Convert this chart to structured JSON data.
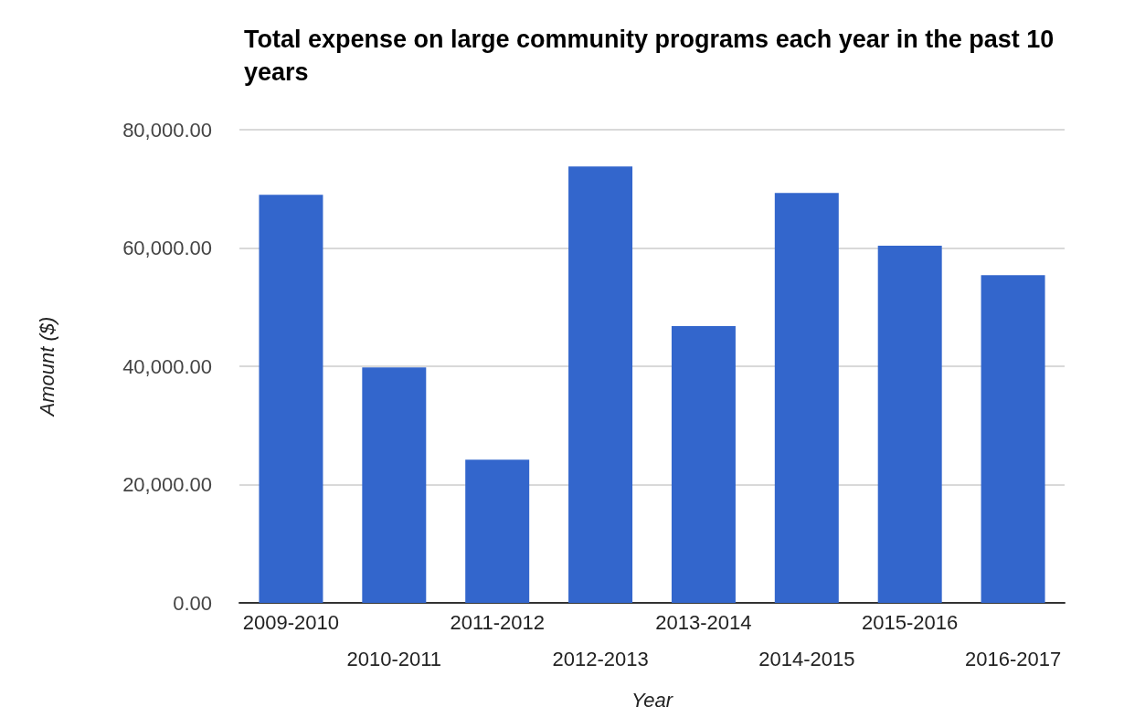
{
  "chart_data": {
    "type": "bar",
    "title": "Total expense on large community programs each year in the past 10 years",
    "xlabel": "Year",
    "ylabel": "Amount ($)",
    "categories": [
      "2009-2010",
      "2010-2011",
      "2011-2012",
      "2012-2013",
      "2013-2014",
      "2014-2015",
      "2015-2016",
      "2016-2017"
    ],
    "values": [
      69000,
      39800,
      24200,
      73800,
      46800,
      69300,
      60400,
      55400
    ],
    "color": "#3366cc",
    "ylim": [
      0,
      80000
    ],
    "yticks": [
      {
        "value": 0,
        "label": "0.00"
      },
      {
        "value": 20000,
        "label": "20,000.00"
      },
      {
        "value": 40000,
        "label": "40,000.00"
      },
      {
        "value": 60000,
        "label": "60,000.00"
      },
      {
        "value": 80000,
        "label": "80,000.00"
      }
    ],
    "grid": "y"
  }
}
